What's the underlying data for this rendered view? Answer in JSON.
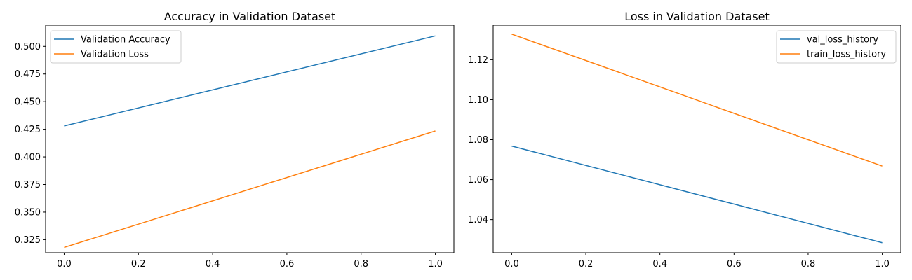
{
  "colors": {
    "series1": "#1f77b4",
    "series2": "#ff7f0e"
  },
  "chart_data": [
    {
      "type": "line",
      "title": "Accuracy in Validation Dataset",
      "xlabel": "",
      "ylabel": "",
      "xlim": [
        -0.05,
        1.05
      ],
      "ylim": [
        0.3132,
        0.5192
      ],
      "xticks": [
        0.0,
        0.2,
        0.4,
        0.6,
        0.8,
        1.0
      ],
      "xtick_labels": [
        "0.0",
        "0.2",
        "0.4",
        "0.6",
        "0.8",
        "1.0"
      ],
      "yticks": [
        0.325,
        0.35,
        0.375,
        0.4,
        0.425,
        0.45,
        0.475,
        0.5
      ],
      "ytick_labels": [
        "0.325",
        "0.350",
        "0.375",
        "0.400",
        "0.425",
        "0.450",
        "0.475",
        "0.500"
      ],
      "grid": false,
      "legend_position": "upper-left",
      "series": [
        {
          "name": "Validation Accuracy",
          "color_key": "series1",
          "x": [
            0,
            1
          ],
          "y": [
            0.428,
            0.5095
          ]
        },
        {
          "name": "Validation Loss",
          "color_key": "series2",
          "x": [
            0,
            1
          ],
          "y": [
            0.318,
            0.4235
          ]
        }
      ]
    },
    {
      "type": "line",
      "title": "Loss in Validation Dataset",
      "xlabel": "",
      "ylabel": "",
      "xlim": [
        -0.05,
        1.05
      ],
      "ylim": [
        1.0234,
        1.1373
      ],
      "xticks": [
        0.0,
        0.2,
        0.4,
        0.6,
        0.8,
        1.0
      ],
      "xtick_labels": [
        "0.0",
        "0.2",
        "0.4",
        "0.6",
        "0.8",
        "1.0"
      ],
      "yticks": [
        1.04,
        1.06,
        1.08,
        1.1,
        1.12
      ],
      "ytick_labels": [
        "1.04",
        "1.06",
        "1.08",
        "1.10",
        "1.12"
      ],
      "grid": false,
      "legend_position": "upper-right",
      "series": [
        {
          "name": "val_loss_history",
          "color_key": "series1",
          "x": [
            0,
            1
          ],
          "y": [
            1.0768,
            1.0284
          ]
        },
        {
          "name": "train_loss_history",
          "color_key": "series2",
          "x": [
            0,
            1
          ],
          "y": [
            1.1328,
            1.0668
          ]
        }
      ]
    }
  ]
}
